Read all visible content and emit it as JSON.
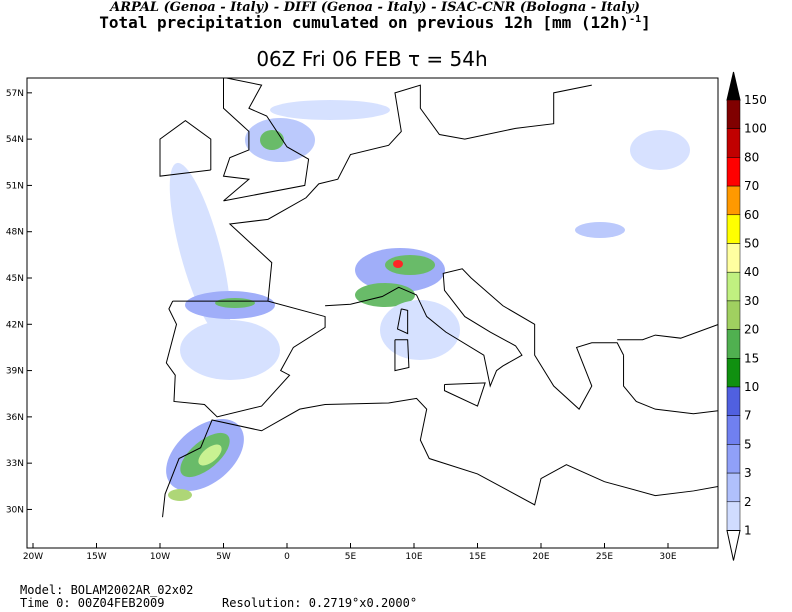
{
  "header": {
    "line1": "ARPAL (Genoa - Italy)  -  DIFI (Genoa - Italy)  -  ISAC-CNR (Bologna - Italy)",
    "line2_main": "Total precipitation cumulated on previous 12h [mm (12h)",
    "line2_sup": "-1",
    "line2_end": "]"
  },
  "title": "06Z Fri 06 FEB  τ = 54h",
  "map": {
    "lon_labels": [
      "20W",
      "15W",
      "10W",
      "5W",
      "0",
      "5E",
      "10E",
      "15E",
      "20E",
      "25E",
      "30E"
    ],
    "lat_labels": [
      "57N",
      "54N",
      "51N",
      "48N",
      "45N",
      "42N",
      "39N",
      "36N",
      "33N",
      "30N"
    ]
  },
  "colorbar": {
    "labels": [
      "150",
      "100",
      "80",
      "70",
      "60",
      "50",
      "40",
      "30",
      "20",
      "15",
      "10",
      "7",
      "5",
      "3",
      "2",
      "1"
    ]
  },
  "footer": {
    "model": "Model: BOLAM2002AR_02x02",
    "time0": "Time 0: 00Z04FEB2009",
    "resolution": "Resolution: 0.2719°x0.2000°"
  }
}
